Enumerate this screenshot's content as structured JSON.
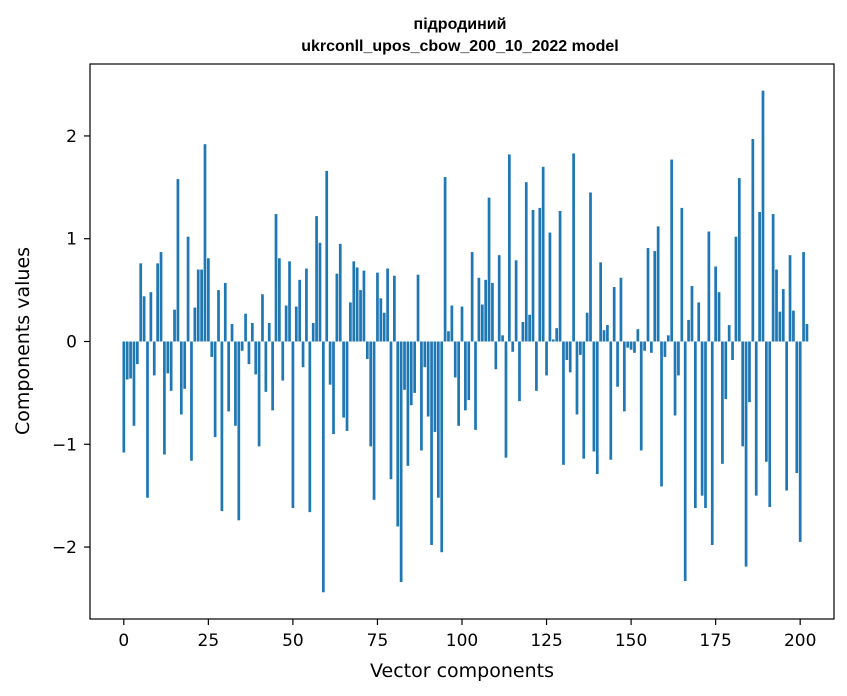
{
  "chart_data": {
    "type": "bar",
    "title": "підродиний",
    "subtitle": "ukrconll_upos_cbow_200_10_2022 model",
    "xlabel": "Vector components",
    "ylabel": "Components values",
    "xlim": [
      -10,
      210
    ],
    "ylim": [
      -2.7,
      2.7
    ],
    "xticks": [
      0,
      25,
      50,
      75,
      100,
      125,
      150,
      175,
      200
    ],
    "yticks": [
      -2,
      -1,
      0,
      1,
      2
    ],
    "ytick_labels": [
      "−2",
      "−1",
      "0",
      "1",
      "2"
    ],
    "grid": false,
    "series": [
      {
        "name": "components",
        "color": "#1f77b4",
        "values": [
          -1.08,
          -0.37,
          -0.36,
          -0.82,
          -0.22,
          0.76,
          0.44,
          -1.52,
          0.48,
          -0.33,
          0.76,
          0.87,
          -1.1,
          -0.31,
          -0.48,
          0.31,
          1.58,
          -0.71,
          -0.46,
          1.02,
          -1.16,
          0.33,
          0.7,
          0.7,
          1.92,
          0.81,
          -0.15,
          -0.93,
          0.5,
          -1.65,
          0.57,
          -0.68,
          0.17,
          -0.82,
          -1.74,
          -0.09,
          0.27,
          -0.22,
          0.18,
          -0.32,
          -1.02,
          0.46,
          -0.49,
          0.18,
          -0.67,
          1.24,
          0.81,
          -0.38,
          0.35,
          0.78,
          -1.62,
          0.34,
          0.6,
          -0.25,
          0.71,
          -1.66,
          0.18,
          1.22,
          0.96,
          -2.44,
          1.66,
          -0.42,
          -0.9,
          0.66,
          0.95,
          -0.74,
          -0.87,
          0.38,
          0.78,
          0.72,
          0.5,
          0.69,
          -0.17,
          -1.02,
          -1.54,
          0.67,
          0.42,
          0.28,
          0.71,
          -1.34,
          0.64,
          -1.8,
          -2.34,
          -0.47,
          -1.21,
          -0.62,
          -0.5,
          0.65,
          -1.06,
          -0.25,
          -0.73,
          -1.98,
          -0.88,
          -1.52,
          -2.05,
          1.6,
          0.1,
          0.35,
          -0.35,
          -0.82,
          0.34,
          -0.67,
          -0.57,
          0.87,
          -0.86,
          0.62,
          0.36,
          0.6,
          1.4,
          0.57,
          -0.27,
          0.84,
          0.06,
          -1.13,
          1.82,
          -0.1,
          0.79,
          -0.58,
          0.19,
          1.55,
          0.26,
          1.28,
          -0.48,
          1.3,
          1.7,
          -0.33,
          1.06,
          0.02,
          0.13,
          1.27,
          -1.2,
          -0.18,
          -0.3,
          1.83,
          -0.71,
          -0.13,
          -1.14,
          0.28,
          1.45,
          -1.07,
          -1.29,
          0.77,
          0.11,
          0.16,
          -1.15,
          0.53,
          -0.44,
          0.62,
          -0.68,
          -0.06,
          -0.08,
          -0.11,
          0.12,
          -1.06,
          -0.09,
          0.91,
          -0.11,
          0.88,
          1.12,
          -1.41,
          -0.15,
          0.06,
          1.77,
          -0.72,
          -0.33,
          1.3,
          -2.33,
          0.21,
          0.54,
          -1.62,
          0.38,
          -1.5,
          -1.62,
          1.07,
          -1.98,
          0.73,
          0.48,
          -1.19,
          -0.56,
          0.16,
          -0.18,
          1.02,
          1.59,
          -1.02,
          -2.19,
          -0.59,
          1.97,
          -1.5,
          1.26,
          2.44,
          -1.17,
          -1.61,
          1.24,
          0.7,
          0.29,
          0.51,
          -1.45,
          0.84,
          0.3,
          -1.28,
          -1.95,
          0.87,
          0.17
        ]
      }
    ]
  }
}
